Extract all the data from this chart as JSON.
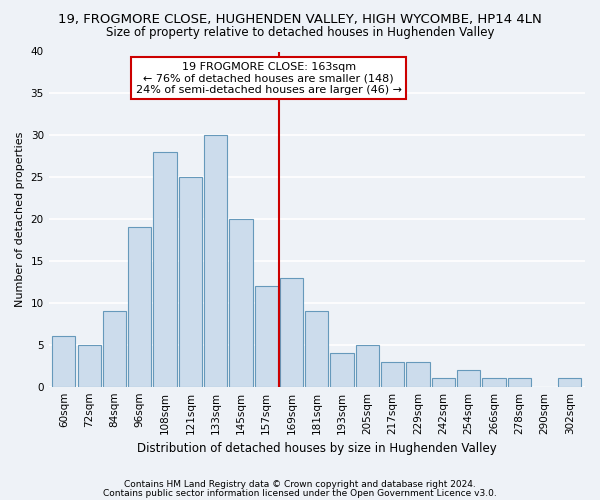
{
  "title": "19, FROGMORE CLOSE, HUGHENDEN VALLEY, HIGH WYCOMBE, HP14 4LN",
  "subtitle": "Size of property relative to detached houses in Hughenden Valley",
  "xlabel": "Distribution of detached houses by size in Hughenden Valley",
  "ylabel": "Number of detached properties",
  "footer1": "Contains HM Land Registry data © Crown copyright and database right 2024.",
  "footer2": "Contains public sector information licensed under the Open Government Licence v3.0.",
  "annotation_line1": "19 FROGMORE CLOSE: 163sqm",
  "annotation_line2": "← 76% of detached houses are smaller (148)",
  "annotation_line3": "24% of semi-detached houses are larger (46) →",
  "bin_labels": [
    "60sqm",
    "72sqm",
    "84sqm",
    "96sqm",
    "108sqm",
    "121sqm",
    "133sqm",
    "145sqm",
    "157sqm",
    "169sqm",
    "181sqm",
    "193sqm",
    "205sqm",
    "217sqm",
    "229sqm",
    "242sqm",
    "254sqm",
    "266sqm",
    "278sqm",
    "290sqm",
    "302sqm"
  ],
  "values": [
    6,
    5,
    9,
    19,
    28,
    25,
    30,
    20,
    12,
    13,
    9,
    4,
    5,
    3,
    3,
    1,
    2,
    1,
    1,
    0,
    1
  ],
  "bar_color": "#ccdcec",
  "bar_edge_color": "#6699bb",
  "vline_x_idx": 8.5,
  "vline_color": "#cc0000",
  "ylim": [
    0,
    40
  ],
  "yticks": [
    0,
    5,
    10,
    15,
    20,
    25,
    30,
    35,
    40
  ],
  "background_color": "#eef2f7",
  "grid_color": "#ffffff",
  "annotation_box_color": "#ffffff",
  "annotation_box_edge": "#cc0000",
  "title_fontsize": 9.5,
  "subtitle_fontsize": 8.5,
  "xlabel_fontsize": 8.5,
  "ylabel_fontsize": 8.0,
  "tick_fontsize": 7.5,
  "annotation_fontsize": 8.0,
  "footer_fontsize": 6.5
}
